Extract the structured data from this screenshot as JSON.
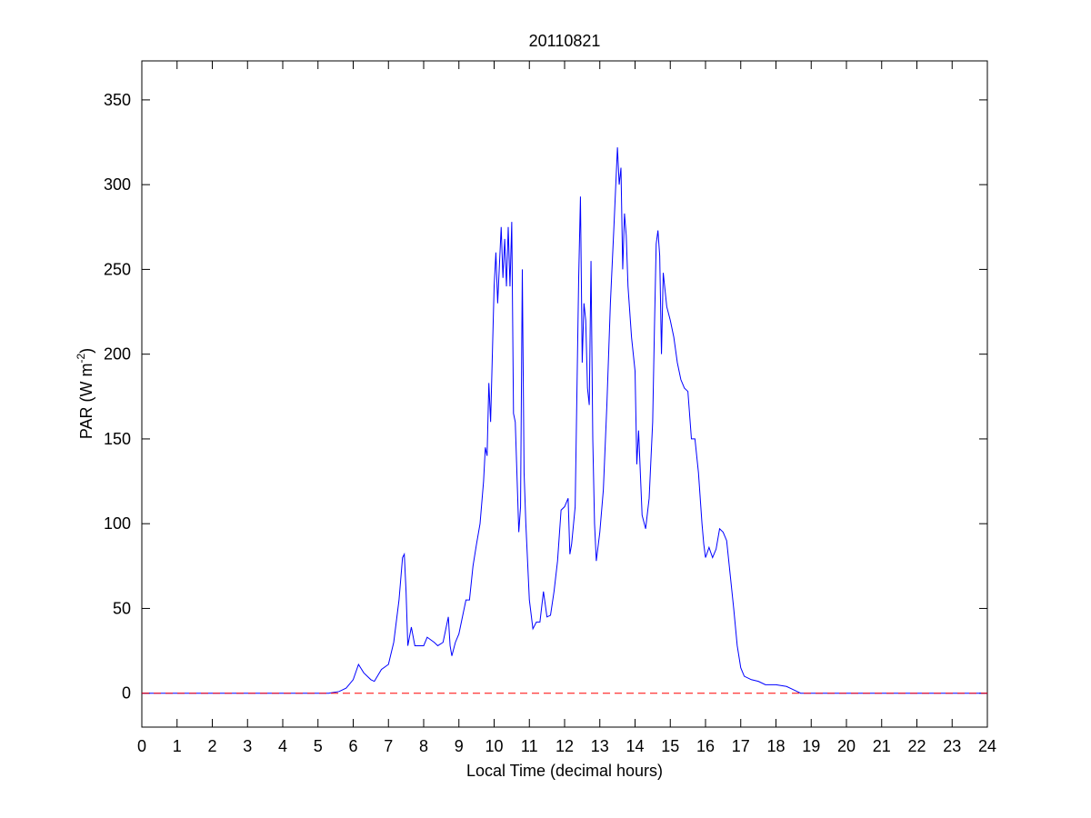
{
  "chart_data": {
    "type": "line",
    "title": "20110821",
    "xlabel": "Local Time (decimal hours)",
    "ylabel": [
      "PAR (W m",
      "-2",
      ")"
    ],
    "x": [
      0,
      5.3,
      5.6,
      5.8,
      6.0,
      6.15,
      6.3,
      6.5,
      6.6,
      6.8,
      7.0,
      7.15,
      7.3,
      7.4,
      7.45,
      7.5,
      7.55,
      7.65,
      7.75,
      8.0,
      8.1,
      8.3,
      8.4,
      8.55,
      8.7,
      8.75,
      8.8,
      8.9,
      9.0,
      9.1,
      9.2,
      9.3,
      9.4,
      9.5,
      9.6,
      9.7,
      9.75,
      9.8,
      9.85,
      9.9,
      9.95,
      10.0,
      10.05,
      10.1,
      10.2,
      10.25,
      10.3,
      10.35,
      10.4,
      10.45,
      10.5,
      10.55,
      10.6,
      10.7,
      10.75,
      10.8,
      10.85,
      10.9,
      11.0,
      11.1,
      11.2,
      11.3,
      11.4,
      11.5,
      11.6,
      11.7,
      11.8,
      11.9,
      12.0,
      12.1,
      12.15,
      12.2,
      12.3,
      12.4,
      12.45,
      12.5,
      12.55,
      12.6,
      12.65,
      12.7,
      12.75,
      12.8,
      12.85,
      12.9,
      13.0,
      13.1,
      13.2,
      13.3,
      13.4,
      13.5,
      13.55,
      13.6,
      13.65,
      13.7,
      13.75,
      13.8,
      13.9,
      14.0,
      14.05,
      14.1,
      14.2,
      14.3,
      14.4,
      14.5,
      14.55,
      14.6,
      14.65,
      14.7,
      14.75,
      14.8,
      14.9,
      15.0,
      15.1,
      15.2,
      15.3,
      15.4,
      15.5,
      15.6,
      15.7,
      15.8,
      15.9,
      15.95,
      16.0,
      16.1,
      16.2,
      16.3,
      16.4,
      16.5,
      16.6,
      16.7,
      16.8,
      16.9,
      17.0,
      17.1,
      17.3,
      17.5,
      17.7,
      18.0,
      18.3,
      18.5,
      18.7,
      24
    ],
    "series": [
      {
        "color": "#0000ff",
        "values": [
          0,
          0,
          1,
          3,
          8,
          17,
          12,
          8,
          7,
          14,
          17,
          30,
          55,
          80,
          82,
          60,
          28,
          39,
          28,
          28,
          33,
          30,
          28,
          30,
          45,
          28,
          22,
          30,
          35,
          45,
          55,
          55,
          75,
          88,
          100,
          125,
          145,
          140,
          183,
          160,
          200,
          240,
          260,
          230,
          275,
          245,
          268,
          240,
          275,
          240,
          278,
          165,
          160,
          95,
          110,
          250,
          130,
          100,
          55,
          38,
          42,
          42,
          60,
          45,
          46,
          60,
          78,
          108,
          110,
          115,
          82,
          88,
          110,
          245,
          293,
          195,
          230,
          220,
          180,
          170,
          255,
          150,
          100,
          78,
          95,
          120,
          170,
          230,
          275,
          322,
          300,
          310,
          250,
          283,
          270,
          240,
          210,
          190,
          135,
          155,
          105,
          97,
          115,
          160,
          215,
          265,
          273,
          258,
          200,
          248,
          228,
          220,
          210,
          195,
          185,
          180,
          178,
          150,
          150,
          130,
          100,
          88,
          80,
          86,
          80,
          85,
          97,
          95,
          90,
          70,
          50,
          28,
          15,
          10,
          8,
          7,
          5,
          5,
          4,
          2,
          0,
          0
        ]
      }
    ],
    "reference_line": {
      "value": 0,
      "color": "#ff0000",
      "style": "dashed"
    },
    "xlim": [
      0,
      24
    ],
    "xticks": [
      0,
      1,
      2,
      3,
      4,
      5,
      6,
      7,
      8,
      9,
      10,
      11,
      12,
      13,
      14,
      15,
      16,
      17,
      18,
      19,
      20,
      21,
      22,
      23,
      24
    ],
    "ylim": [
      -20,
      373
    ],
    "yticks": [
      0,
      50,
      100,
      150,
      200,
      250,
      300,
      350
    ]
  }
}
